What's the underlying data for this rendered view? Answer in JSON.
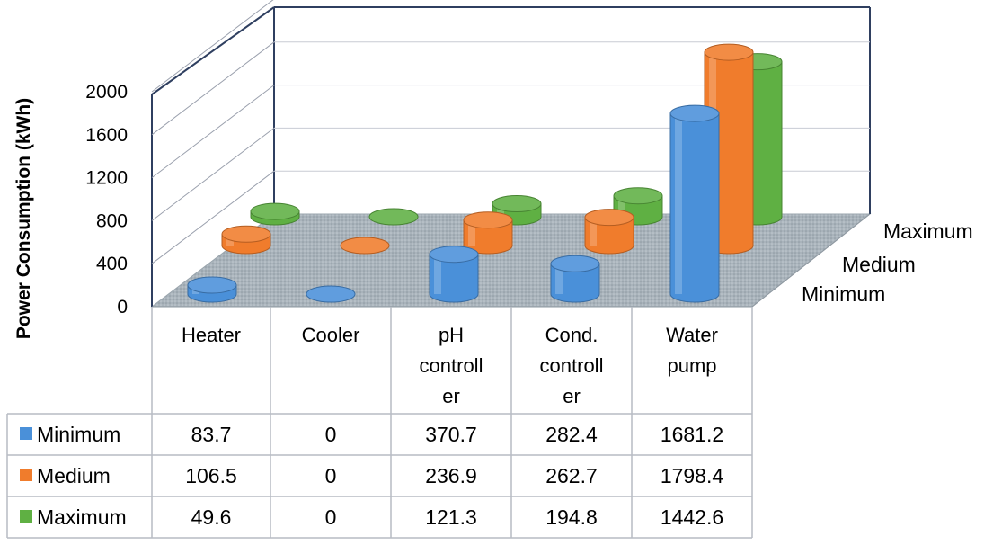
{
  "chart_data": {
    "type": "bar",
    "style": "3d-cylinder with data table",
    "ylabel": "Power Consumption (kWh)",
    "ylim": [
      0,
      2000
    ],
    "yticks": [
      0,
      400,
      800,
      1200,
      1600,
      2000
    ],
    "categories": [
      [
        "Heater"
      ],
      [
        "Cooler"
      ],
      [
        "pH",
        "controll",
        "er"
      ],
      [
        "Cond.",
        "controll",
        "er"
      ],
      [
        "Water",
        "pump"
      ]
    ],
    "series": [
      {
        "name": "Minimum",
        "color": "#4a90d9",
        "values": [
          "83.7",
          "0",
          "370.7",
          "282.4",
          "1681.2"
        ]
      },
      {
        "name": "Medium",
        "color": "#f07c2c",
        "values": [
          "106.5",
          "0",
          "236.9",
          "262.7",
          "1798.4"
        ]
      },
      {
        "name": "Maximum",
        "color": "#5fb043",
        "values": [
          "49.6",
          "0",
          "121.3",
          "194.8",
          "1442.6"
        ]
      }
    ],
    "depth_labels": [
      "Maximum",
      "Medium",
      "Minimum"
    ]
  }
}
